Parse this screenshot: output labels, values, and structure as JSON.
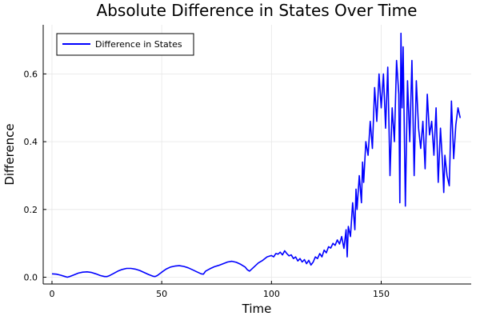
{
  "chart_data": {
    "type": "line",
    "title": "Absolute Difference in States Over Time",
    "xlabel": "Time",
    "ylabel": "Difference",
    "xlim": [
      -4,
      191
    ],
    "ylim": [
      -0.02,
      0.745
    ],
    "xticks": [
      0,
      50,
      100,
      150
    ],
    "yticks": [
      0.0,
      0.2,
      0.4,
      0.6
    ],
    "ytick_labels": [
      "0.0",
      "0.2",
      "0.4",
      "0.6"
    ],
    "grid": true,
    "legend_position": "top-left",
    "series": [
      {
        "name": "Difference in States",
        "color": "#0000ff",
        "x": [
          0,
          2,
          4,
          6,
          7,
          8,
          10,
          12,
          14,
          16,
          18,
          20,
          22,
          24,
          25,
          26,
          28,
          30,
          32,
          34,
          36,
          38,
          40,
          42,
          44,
          46,
          47,
          48,
          50,
          52,
          54,
          56,
          58,
          60,
          62,
          64,
          66,
          68,
          69,
          70,
          72,
          74,
          76,
          78,
          80,
          82,
          84,
          86,
          88,
          89,
          90,
          92,
          94,
          96,
          98,
          100,
          101,
          102,
          103,
          104,
          105,
          106,
          107,
          108,
          109,
          110,
          111,
          112,
          113,
          114,
          115,
          116,
          117,
          118,
          119,
          120,
          121,
          122,
          123,
          124,
          125,
          126,
          127,
          128,
          129,
          130,
          131,
          132,
          133,
          134,
          134.5,
          135,
          136,
          137,
          138,
          138.5,
          139,
          140,
          141,
          141.5,
          142,
          143,
          144,
          145,
          146,
          147,
          148,
          149,
          150,
          151,
          152,
          153,
          154,
          155,
          156,
          157,
          158,
          158.5,
          159,
          159.5,
          160,
          161,
          162,
          163,
          164,
          165,
          166,
          167,
          168,
          169,
          170,
          171,
          172,
          173,
          174,
          175,
          176,
          177,
          178,
          178.5,
          179,
          180,
          181,
          182,
          183,
          184,
          185,
          186
        ],
        "y": [
          0.01,
          0.009,
          0.006,
          0.002,
          0.0,
          0.002,
          0.007,
          0.012,
          0.015,
          0.016,
          0.014,
          0.01,
          0.005,
          0.002,
          0.002,
          0.004,
          0.011,
          0.018,
          0.023,
          0.026,
          0.026,
          0.024,
          0.02,
          0.014,
          0.008,
          0.003,
          0.002,
          0.005,
          0.015,
          0.024,
          0.03,
          0.033,
          0.034,
          0.032,
          0.028,
          0.022,
          0.016,
          0.01,
          0.009,
          0.018,
          0.025,
          0.031,
          0.035,
          0.04,
          0.045,
          0.047,
          0.044,
          0.038,
          0.03,
          0.022,
          0.018,
          0.03,
          0.042,
          0.05,
          0.06,
          0.064,
          0.06,
          0.07,
          0.068,
          0.074,
          0.066,
          0.078,
          0.07,
          0.063,
          0.066,
          0.055,
          0.06,
          0.048,
          0.055,
          0.045,
          0.052,
          0.04,
          0.05,
          0.036,
          0.045,
          0.06,
          0.055,
          0.07,
          0.06,
          0.08,
          0.072,
          0.09,
          0.086,
          0.1,
          0.094,
          0.11,
          0.098,
          0.12,
          0.085,
          0.14,
          0.06,
          0.15,
          0.12,
          0.22,
          0.14,
          0.26,
          0.2,
          0.3,
          0.22,
          0.34,
          0.28,
          0.4,
          0.36,
          0.46,
          0.38,
          0.56,
          0.46,
          0.6,
          0.5,
          0.6,
          0.44,
          0.62,
          0.3,
          0.5,
          0.4,
          0.64,
          0.54,
          0.22,
          0.72,
          0.5,
          0.68,
          0.21,
          0.58,
          0.4,
          0.64,
          0.3,
          0.58,
          0.44,
          0.38,
          0.46,
          0.32,
          0.54,
          0.42,
          0.46,
          0.36,
          0.5,
          0.28,
          0.44,
          0.33,
          0.25,
          0.36,
          0.3,
          0.27,
          0.52,
          0.35,
          0.45,
          0.5,
          0.47
        ]
      }
    ]
  }
}
